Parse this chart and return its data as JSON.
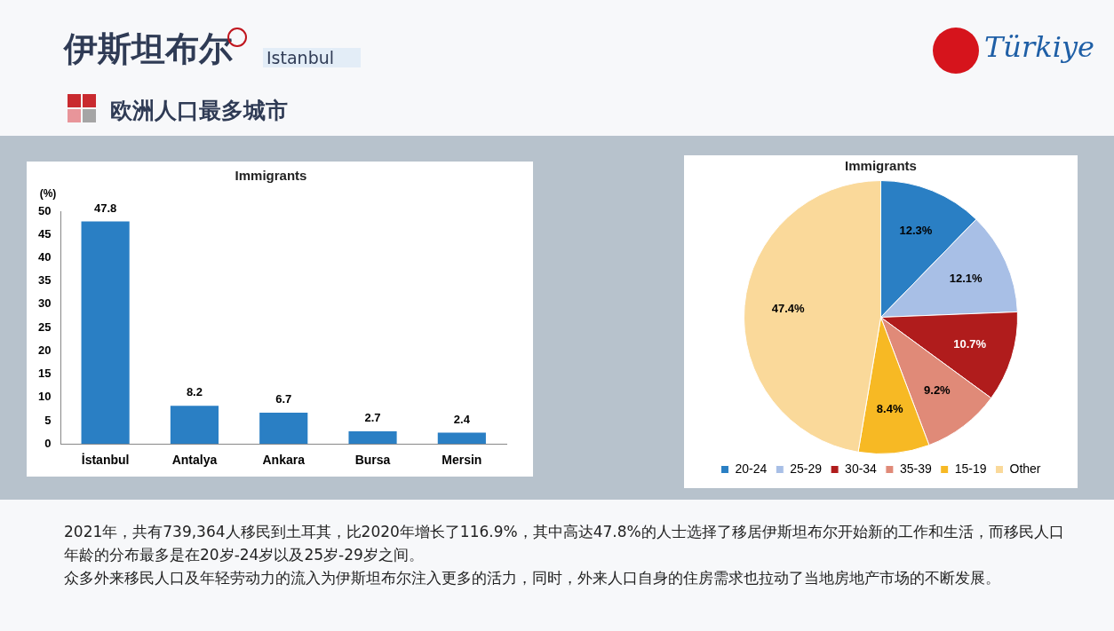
{
  "chart_data": [
    {
      "type": "other",
      "title": "伊斯坦布尔",
      "subtitle": "Istanbul",
      "annotations": [
        "Türkiye",
        "欧洲人口最多城市",
        "2021年，共有739,364人移民到土耳其，比2020年增长了116.9%，其中高达47.8%的人士选择了移居伊斯坦布尔开始新的工作和生活，而移民人口年龄的分布最多是在20岁-24岁以及25岁-29岁之间。",
        "众多外来移民人口及年轻劳动力的流入为伊斯坦布尔注入更多的活力，同时，外来人口自身的住房需求也拉动了当地房地产市场的不断发展。"
      ]
    },
    {
      "type": "bar",
      "title": "Immigrants",
      "ylabel": "(%)",
      "categories": [
        "İstanbul",
        "Antalya",
        "Ankara",
        "Bursa",
        "Mersin"
      ],
      "values": [
        47.8,
        8.2,
        6.7,
        2.7,
        2.4
      ],
      "color": "#2a7fc4",
      "ylim": [
        0,
        50
      ],
      "yticks": [
        0,
        5,
        10,
        15,
        20,
        25,
        30,
        35,
        40,
        45,
        50
      ],
      "data_labels": true,
      "grid": false,
      "legend": false
    },
    {
      "type": "pie",
      "title": "Immigrants",
      "categories": [
        "20-24",
        "25-29",
        "30-34",
        "35-39",
        "15-19",
        "Other"
      ],
      "values": [
        12.3,
        12.1,
        10.7,
        9.2,
        8.4,
        47.4
      ],
      "colors": [
        "#2a7fc4",
        "#a8bfe6",
        "#b01c1c",
        "#e08a78",
        "#f7b924",
        "#fad99a"
      ],
      "value_labels": [
        "12.3%",
        "12.1%",
        "10.7%",
        "9.2%",
        "8.4%",
        "47.4%"
      ],
      "legend": "bottom"
    }
  ]
}
